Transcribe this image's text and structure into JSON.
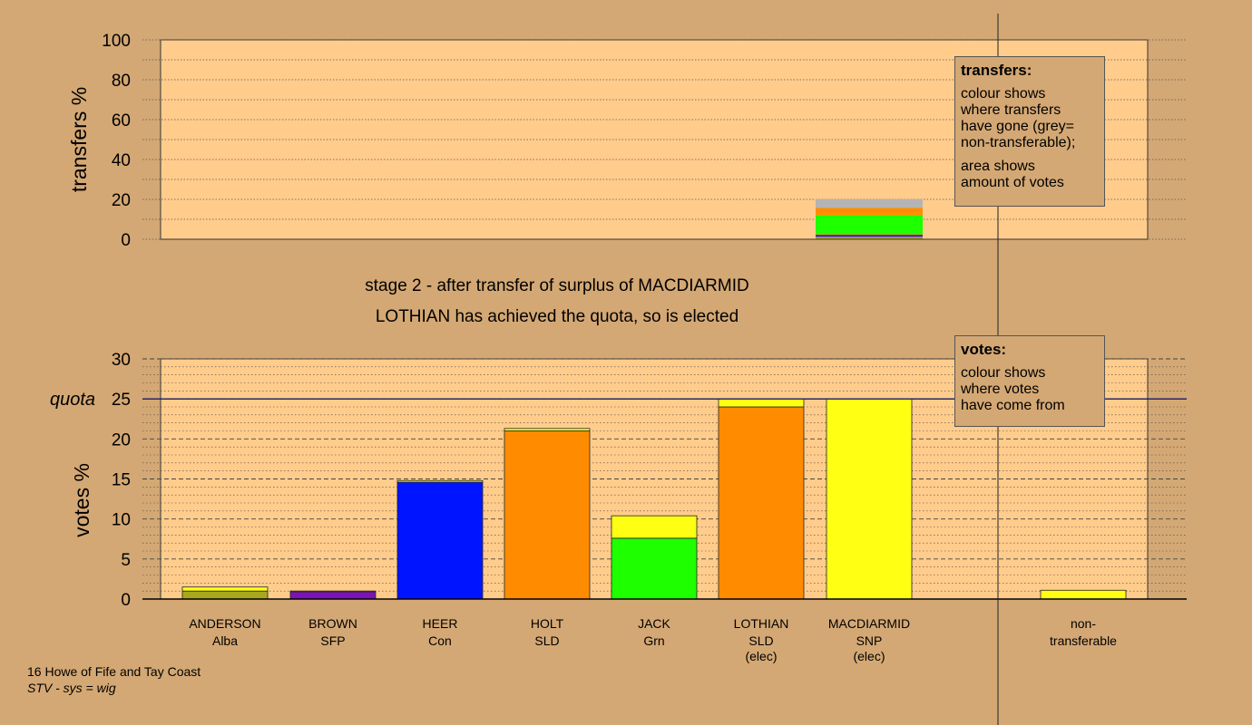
{
  "colors": {
    "background": "#D4A874",
    "plot_fill": "#FFCC8C",
    "Alba": "#A8A820",
    "SFP": "#7B14B8",
    "Con": "#0014FF",
    "SLD": "#FF8C00",
    "Grn": "#1EFF00",
    "SNP": "#FFFF14",
    "grey": "#B4B4B4"
  },
  "header": {
    "stage_line": "stage 2 - after transfer of surplus of MACDIARMID",
    "elected_line": "LOTHIAN has achieved the quota, so is elected"
  },
  "footer": {
    "constituency": "16 Howe of Fife and Tay Coast",
    "system": "STV - sys = wig"
  },
  "legend_transfers": {
    "title": "transfers:",
    "lines": [
      "colour shows",
      "where transfers",
      "have gone (grey=",
      "non-transferable);"
    ],
    "lines2": [
      "area shows",
      "amount of votes"
    ]
  },
  "legend_votes": {
    "title": "votes:",
    "lines": [
      "colour shows",
      "where votes",
      "have come from"
    ]
  },
  "chart_data": [
    {
      "type": "bar",
      "stacked": true,
      "ylabel": "transfers %",
      "ylim": [
        0,
        100
      ],
      "yticks": [
        0,
        20,
        40,
        60,
        80,
        100
      ],
      "source_column": "MACDIARMID",
      "segments": [
        {
          "to": "Alba",
          "value": 1.2
        },
        {
          "to": "SFP",
          "value": 0.4
        },
        {
          "to": "Con",
          "value": 0.6
        },
        {
          "to": "SLD",
          "value": 0.3
        },
        {
          "to": "Grn",
          "value": 9.5
        },
        {
          "to": "SLD",
          "value": 1.1
        },
        {
          "to": "SLD (LOTHIAN)",
          "value": 2.6
        },
        {
          "to": "non-transferable",
          "value": 4.4
        }
      ],
      "grid": "dotted"
    },
    {
      "type": "bar",
      "stacked": true,
      "ylabel": "votes %",
      "ylim": [
        0,
        30
      ],
      "yticks": [
        0,
        5,
        10,
        15,
        20,
        25,
        30
      ],
      "quota": {
        "label": "quota",
        "value": 25
      },
      "candidates": [
        {
          "name": "ANDERSON",
          "party": "Alba",
          "note": "",
          "segments": [
            {
              "from": "Alba",
              "value": 1.0
            },
            {
              "from": "SNP",
              "value": 0.5
            }
          ]
        },
        {
          "name": "BROWN",
          "party": "SFP",
          "note": "",
          "segments": [
            {
              "from": "SFP",
              "value": 0.9
            },
            {
              "from": "SNP",
              "value": 0.1
            }
          ]
        },
        {
          "name": "HEER",
          "party": "Con",
          "note": "",
          "segments": [
            {
              "from": "Con",
              "value": 14.6
            },
            {
              "from": "SNP",
              "value": 0.2
            }
          ]
        },
        {
          "name": "HOLT",
          "party": "SLD",
          "note": "",
          "segments": [
            {
              "from": "SLD",
              "value": 21.0
            },
            {
              "from": "SNP",
              "value": 0.3
            }
          ]
        },
        {
          "name": "JACK",
          "party": "Grn",
          "note": "",
          "segments": [
            {
              "from": "Grn",
              "value": 7.6
            },
            {
              "from": "SNP",
              "value": 2.8
            }
          ]
        },
        {
          "name": "LOTHIAN",
          "party": "SLD",
          "note": "(elec)",
          "segments": [
            {
              "from": "SLD",
              "value": 24.0
            },
            {
              "from": "SNP",
              "value": 1.0
            }
          ]
        },
        {
          "name": "MACDIARMID",
          "party": "SNP",
          "note": "(elec)",
          "segments": [
            {
              "from": "SNP",
              "value": 25.0
            }
          ]
        },
        {
          "name": "non-",
          "party": "transferable",
          "note": "",
          "segments": [
            {
              "from": "SNP",
              "value": 1.1
            }
          ]
        }
      ],
      "grid": "dashed"
    }
  ]
}
